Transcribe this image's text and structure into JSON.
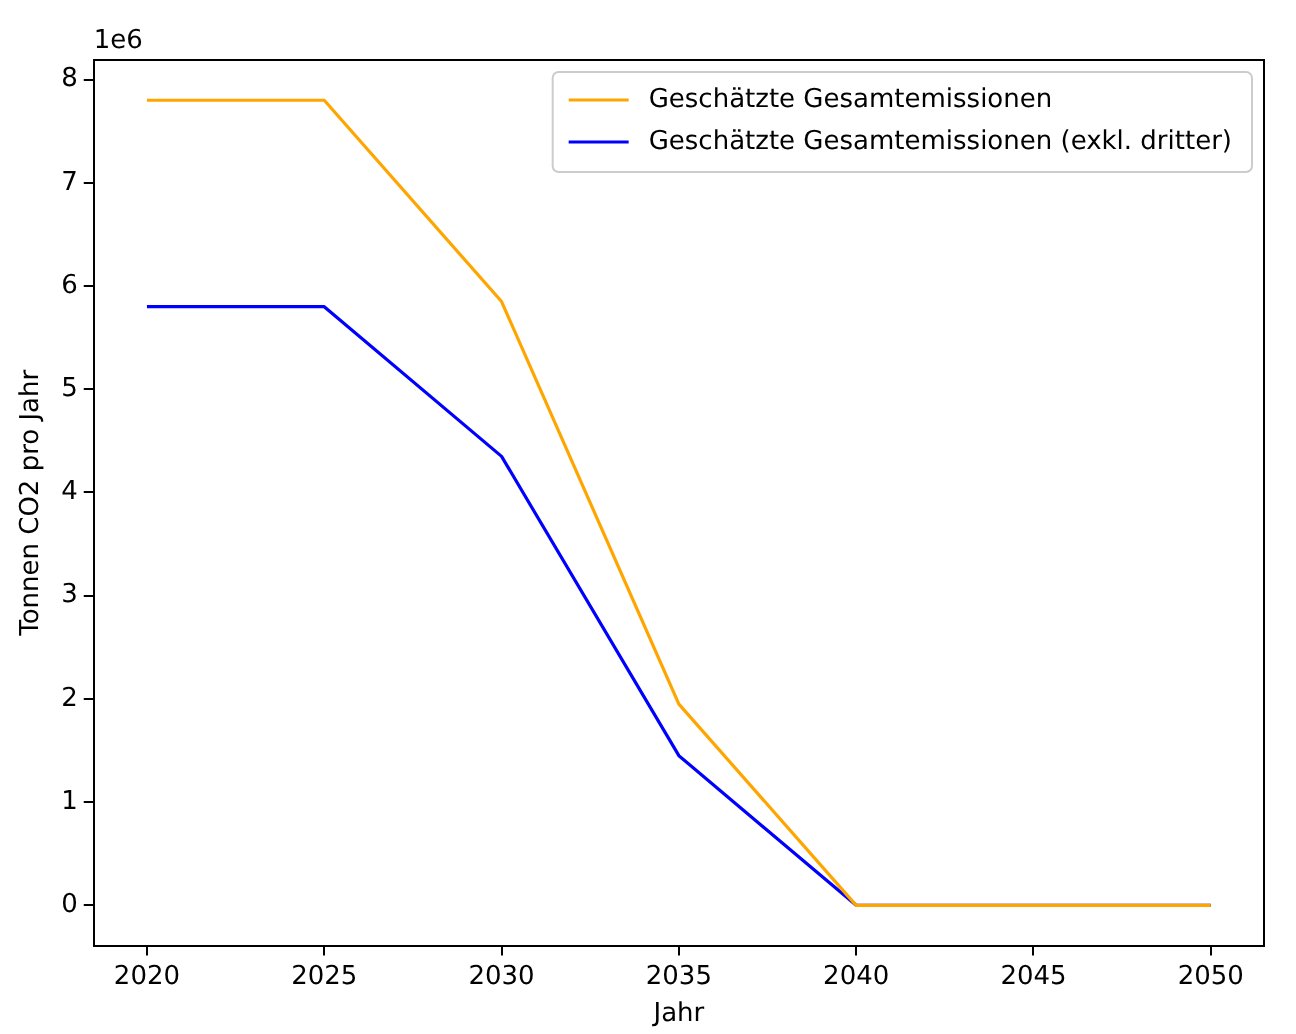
{
  "chart_data": {
    "type": "line",
    "xlabel": "Jahr",
    "ylabel": "Tonnen CO2 pro Jahr",
    "annotations": [
      "1e6"
    ],
    "x": [
      2020,
      2025,
      2030,
      2035,
      2040,
      2045,
      2050
    ],
    "series": [
      {
        "name": "Geschätzte Gesamtemissionen",
        "color": "#ffa500",
        "values": [
          7.8,
          7.8,
          5.85,
          1.95,
          0,
          0,
          0
        ]
      },
      {
        "name": "Geschätzte Gesamtemissionen (exkl. dritter)",
        "color": "#0000ff",
        "values": [
          5.8,
          5.8,
          4.35,
          1.45,
          0,
          0,
          0
        ]
      }
    ],
    "xlim": [
      2018.5,
      2051.5
    ],
    "xticks": [
      2020,
      2025,
      2030,
      2035,
      2040,
      2045,
      2050
    ],
    "ylim": [
      -0.39,
      8.19
    ],
    "yticks": [
      0,
      1,
      2,
      3,
      4,
      5,
      6,
      7,
      8
    ],
    "grid": false,
    "legend": "top right",
    "marker": "none",
    "line_style": "solid"
  }
}
